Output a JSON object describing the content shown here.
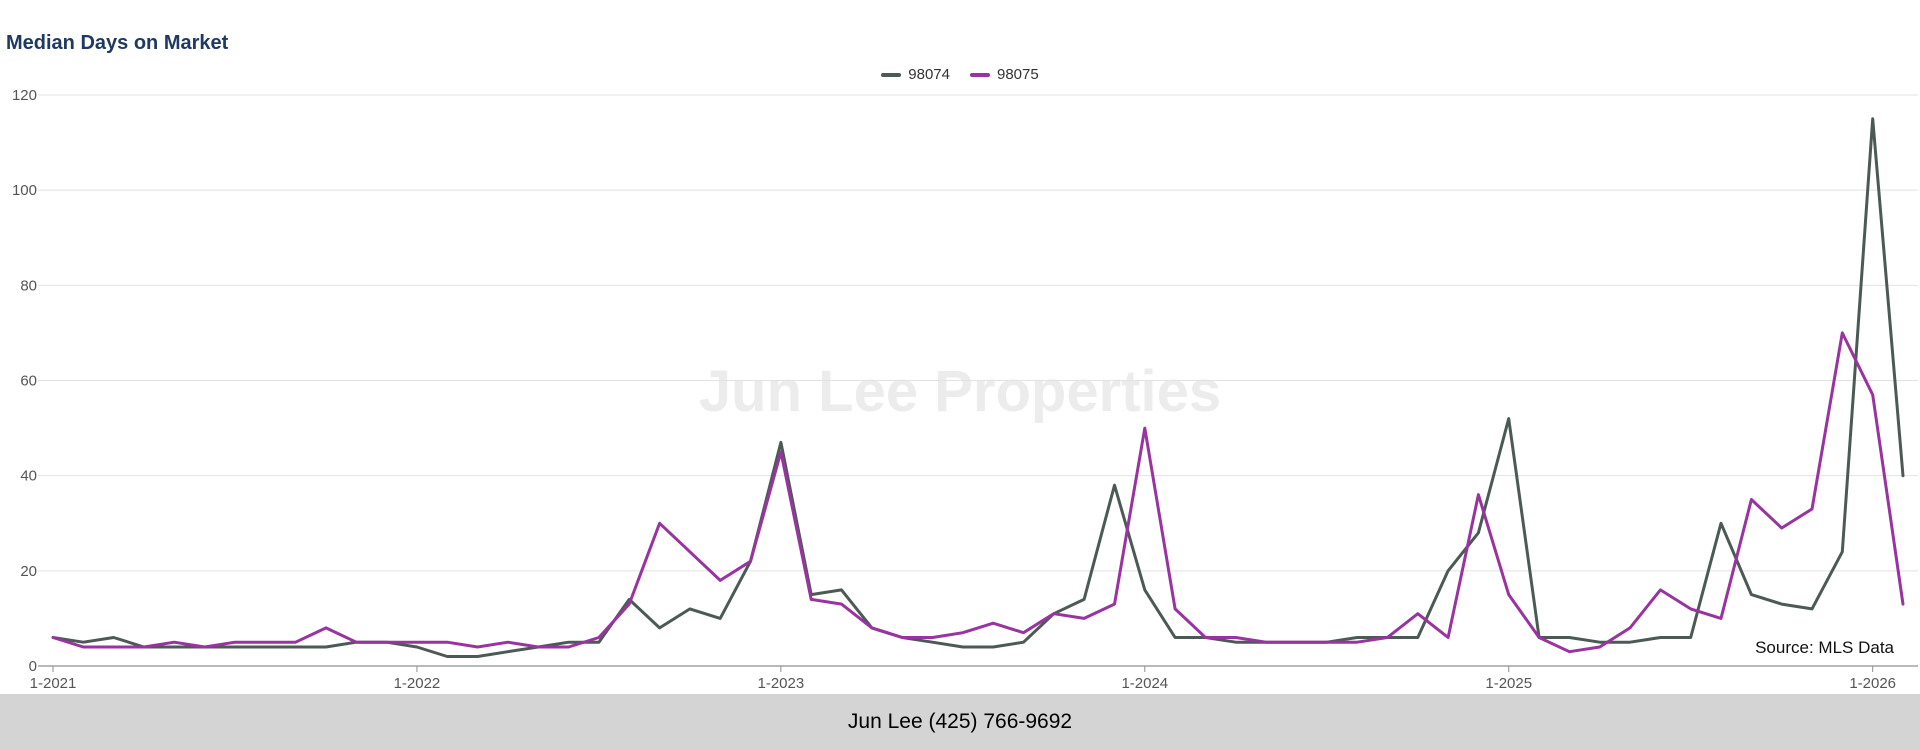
{
  "header": {
    "title": "Median Days on Market"
  },
  "watermark": "Jun Lee Properties",
  "source_note": "Source: MLS Data",
  "footer": {
    "text": "Jun Lee (425) 766-9692"
  },
  "colors": {
    "title": "#1e3a63",
    "grid": "#e2e2e2",
    "axis": "#8f8f8f",
    "axis_label": "#555555",
    "footer_bg": "#d4d4d4",
    "watermark": "#ececec"
  },
  "chart_data": {
    "type": "line",
    "title": "Median Days on Market",
    "ylim": [
      0,
      120
    ],
    "y_ticks": [
      0,
      20,
      40,
      60,
      80,
      100,
      120
    ],
    "x_tick_labels": [
      "1-2021",
      "1-2022",
      "1-2023",
      "1-2024",
      "1-2025",
      "1-2026"
    ],
    "x_tick_indices": [
      0,
      12,
      24,
      36,
      48,
      60
    ],
    "points_per_series": 62,
    "x_unit": "month",
    "grid": "horizontal",
    "legend_position": "top-center",
    "series": [
      {
        "name": "98074",
        "color": "#4c5a56",
        "values": [
          6,
          5,
          6,
          4,
          4,
          4,
          4,
          4,
          4,
          4,
          5,
          5,
          4,
          2,
          2,
          3,
          4,
          5,
          5,
          14,
          8,
          12,
          10,
          22,
          47,
          15,
          16,
          8,
          6,
          5,
          4,
          4,
          5,
          11,
          14,
          38,
          16,
          6,
          6,
          5,
          5,
          5,
          5,
          6,
          6,
          6,
          20,
          28,
          52,
          6,
          6,
          5,
          5,
          6,
          6,
          30,
          15,
          13,
          12,
          24,
          115,
          40
        ]
      },
      {
        "name": "98075",
        "color": "#9933a1",
        "values": [
          6,
          4,
          4,
          4,
          5,
          4,
          5,
          5,
          5,
          8,
          5,
          5,
          5,
          5,
          4,
          5,
          4,
          4,
          6,
          13,
          30,
          24,
          18,
          22,
          45,
          14,
          13,
          8,
          6,
          6,
          7,
          9,
          7,
          11,
          10,
          13,
          50,
          12,
          6,
          6,
          5,
          5,
          5,
          5,
          6,
          11,
          6,
          36,
          15,
          6,
          3,
          4,
          8,
          16,
          12,
          10,
          35,
          29,
          33,
          70,
          57,
          13
        ]
      }
    ]
  }
}
